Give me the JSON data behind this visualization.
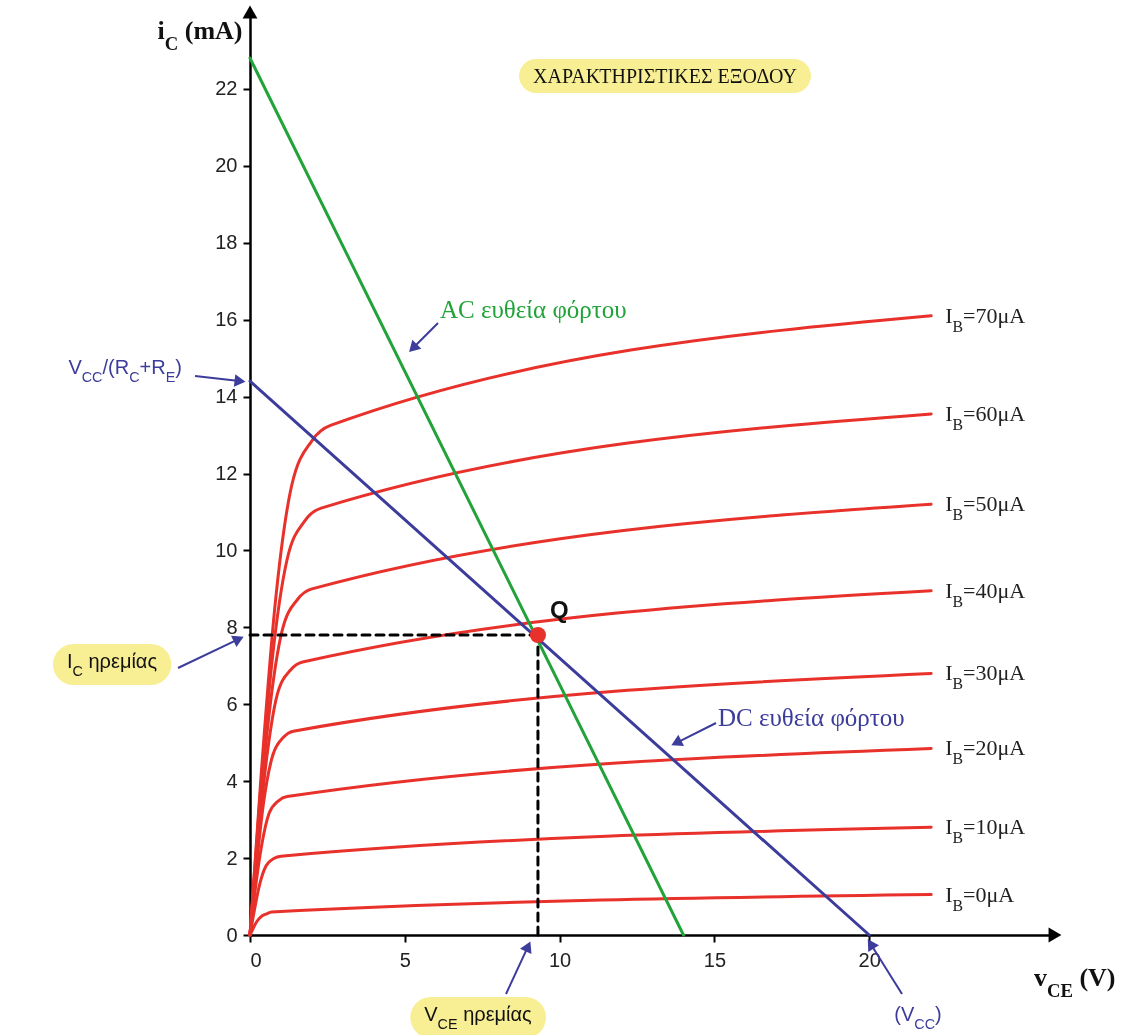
{
  "chart_data": {
    "type": "line",
    "title": "ΧΑΡΑΚΤΗΡΙΣΤΙΚΕΣ ΕΞΟΔΟΥ",
    "xlabel": "v$_{CE}$ (V)",
    "ylabel": "i$_{C}$ (mA)",
    "xlim": [
      0,
      26
    ],
    "ylim": [
      0,
      24
    ],
    "xticks": [
      0,
      5,
      10,
      15,
      20
    ],
    "yticks": [
      0,
      2,
      4,
      6,
      8,
      10,
      12,
      14,
      16,
      18,
      20,
      22
    ],
    "series": [
      {
        "name": "I$_{B}$=0μA",
        "color": "#e8312a",
        "x": [
          0,
          0.1,
          0.22,
          0.36,
          0.54,
          0.7,
          22
        ],
        "values": [
          0,
          0.17,
          0.35,
          0.48,
          0.55,
          0.6,
          1.05
        ]
      },
      {
        "name": "I$_{B}$=10μA",
        "color": "#e8312a",
        "x": [
          0,
          0.14,
          0.31,
          0.52,
          0.77,
          1.0,
          22
        ],
        "values": [
          0,
          0.64,
          1.31,
          1.8,
          1.99,
          2.05,
          2.8
        ]
      },
      {
        "name": "I$_{B}$=20μA",
        "color": "#e8312a",
        "x": [
          0,
          0.16,
          0.37,
          0.62,
          0.92,
          1.2,
          22
        ],
        "values": [
          0,
          1.12,
          2.3,
          3.17,
          3.49,
          3.6,
          4.85
        ]
      },
      {
        "name": "I$_{B}$=30μA",
        "color": "#e8312a",
        "x": [
          0,
          0.19,
          0.43,
          0.73,
          1.08,
          1.4,
          22
        ],
        "values": [
          0,
          1.64,
          3.39,
          4.66,
          5.14,
          5.3,
          6.8
        ]
      },
      {
        "name": "I$_{B}$=40μA",
        "color": "#e8312a",
        "x": [
          0,
          0.23,
          0.53,
          0.88,
          1.31,
          1.7,
          22
        ],
        "values": [
          0,
          2.2,
          4.54,
          6.25,
          6.89,
          7.1,
          8.95
        ]
      },
      {
        "name": "I$_{B}$=50μA",
        "color": "#e8312a",
        "x": [
          0,
          0.27,
          0.62,
          1.04,
          1.54,
          2.0,
          22
        ],
        "values": [
          0,
          2.79,
          5.76,
          7.92,
          8.73,
          9.0,
          11.2
        ]
      },
      {
        "name": "I$_{B}$=60μA",
        "color": "#e8312a",
        "x": [
          0,
          0.31,
          0.71,
          1.2,
          1.77,
          2.3,
          22
        ],
        "values": [
          0,
          3.44,
          7.1,
          9.77,
          10.77,
          11.1,
          13.55
        ]
      },
      {
        "name": "I$_{B}$=70μA",
        "color": "#e8312a",
        "x": [
          0,
          0.35,
          0.8,
          1.35,
          2.0,
          2.6,
          22
        ],
        "values": [
          0,
          4.05,
          8.5,
          11.7,
          12.85,
          13.25,
          16.1
        ]
      },
      {
        "color": "#22a33a",
        "x": [
          0,
          14
        ],
        "values": [
          22.8,
          0
        ]
      },
      {
        "color": "#3c3c9c",
        "x": [
          0,
          20
        ],
        "values": [
          14.4,
          0
        ]
      },
      {
        "color": "#000000",
        "line_style": "dashed",
        "x": [
          0,
          9.3
        ],
        "values": [
          7.8,
          7.8
        ]
      },
      {
        "color": "#000000",
        "line_style": "dashed",
        "x": [
          9.3,
          9.3
        ],
        "values": [
          0,
          7.8
        ]
      },
      {
        "type": "scatter",
        "marker": "circle",
        "color": "#e8312a",
        "x": [
          9.3
        ],
        "values": [
          7.8
        ]
      }
    ],
    "annotations": [
      "AC ευθεία φόρτου",
      "DC ευθεία φόρτου",
      "V$_{CC}$/(R$_{C}$+R$_{E}$)",
      "(V$_{CC}$)",
      "I$_{C}$ ηρεμίας",
      "V$_{CE}$ ηρεμίας",
      {
        "text": "Q",
        "x": 9.3,
        "y": 7.8
      }
    ]
  }
}
